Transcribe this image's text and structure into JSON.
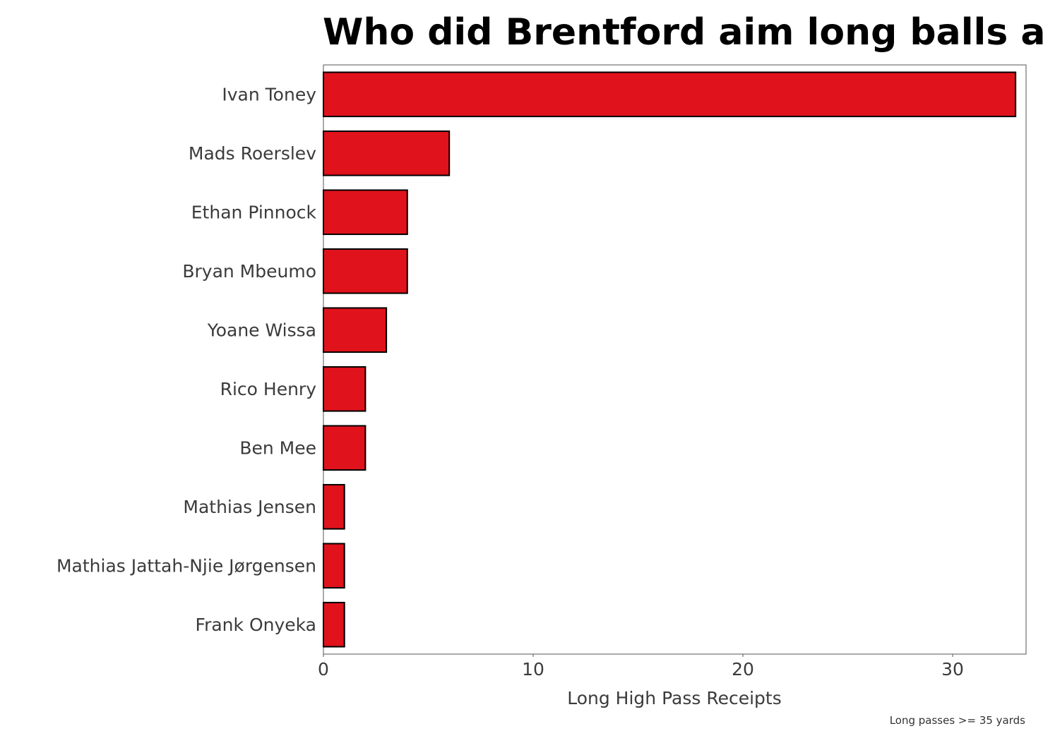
{
  "chart_data": {
    "type": "bar",
    "orientation": "horizontal",
    "title": "Who did Brentford aim long balls at?",
    "xlabel": "Long High Pass Receipts",
    "ylabel": "",
    "caption": "Long passes >= 35 yards",
    "categories": [
      "Ivan Toney",
      "Mads Roerslev",
      "Ethan Pinnock",
      "Bryan Mbeumo",
      "Yoane Wissa",
      "Rico Henry",
      "Ben Mee",
      "Mathias Jensen",
      "Mathias Jattah-Njie Jørgensen",
      "Frank Onyeka"
    ],
    "values": [
      33,
      6,
      4,
      4,
      3,
      2,
      2,
      1,
      1,
      1
    ],
    "xlim": [
      0,
      33.5
    ],
    "xticks": [
      0,
      10,
      20,
      30
    ],
    "grid": false,
    "bar_color": "#e0121b",
    "bar_edge_color": "#000000"
  }
}
